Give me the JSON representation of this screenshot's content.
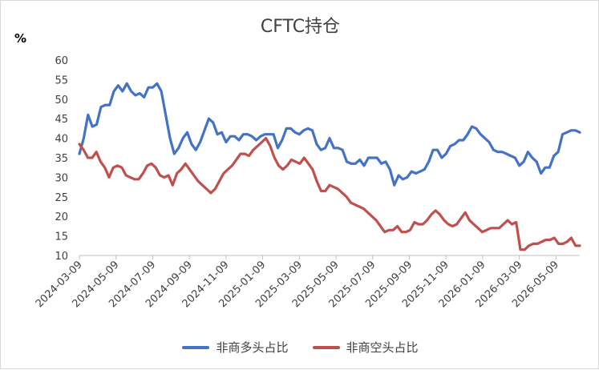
{
  "chart_data": {
    "type": "line",
    "title": "CFTC持仓",
    "unit": "%",
    "ylim": [
      10,
      60
    ],
    "yticks": [
      10,
      15,
      20,
      25,
      30,
      35,
      40,
      45,
      50,
      55,
      60
    ],
    "xlabels": [
      "2024-03-09",
      "2024-05-09",
      "2024-07-09",
      "2024-09-09",
      "2024-11-09",
      "2025-01-09",
      "2025-03-09",
      "2025-05-09",
      "2025-07-09",
      "2025-09-09",
      "2025-11-09",
      "2026-01-09",
      "2026-03-09",
      "2026-05-09"
    ],
    "series": [
      {
        "name": "非商多头占比",
        "color": "#4472c4",
        "values": [
          36,
          40,
          46,
          43,
          43.5,
          48,
          48.5,
          48.5,
          52,
          53.5,
          52,
          54,
          52,
          51,
          51.5,
          50.5,
          53,
          53,
          54,
          52,
          46,
          40,
          36,
          37.5,
          40,
          41.5,
          38.5,
          37,
          39,
          42,
          45,
          44,
          41,
          41.5,
          39,
          40.5,
          40.5,
          39.5,
          41,
          41,
          40.5,
          39.5,
          40.5,
          41,
          41,
          41,
          37.5,
          39.5,
          42.5,
          42.5,
          41.5,
          41,
          42,
          42.5,
          42,
          38.5,
          37,
          37.5,
          40,
          37.5,
          37.5,
          37,
          34,
          33.5,
          33.5,
          34.5,
          33,
          35,
          35,
          35,
          33.5,
          34,
          32,
          28,
          30.5,
          29.5,
          30,
          31.5,
          31,
          31.5,
          32,
          34,
          37,
          37,
          35,
          36,
          38,
          38.5,
          39.5,
          39.5,
          41,
          43,
          42.5,
          41,
          40,
          39,
          37,
          36.5,
          36.5,
          36,
          35.5,
          35,
          33,
          34,
          36.5,
          35,
          34,
          31,
          32.5,
          32.5,
          35.5,
          36.5,
          41,
          41.5,
          42,
          42,
          41.5
        ]
      },
      {
        "name": "非商空头占比",
        "color": "#c0504d",
        "values": [
          38.5,
          37,
          35,
          35,
          36.5,
          34,
          32.5,
          30,
          32.5,
          33,
          32.5,
          30.5,
          30,
          29.5,
          29.5,
          31,
          33,
          33.5,
          32.5,
          30.5,
          30,
          30.5,
          28,
          31,
          32,
          33.5,
          32,
          30.5,
          29,
          28,
          27,
          26,
          27,
          29,
          31,
          32,
          33,
          34.5,
          36,
          36,
          35.5,
          37,
          38,
          39,
          40,
          38,
          35,
          33,
          32,
          33,
          34.5,
          34,
          33.5,
          35,
          33.5,
          32,
          29,
          26.5,
          26.5,
          28,
          27.5,
          27,
          26,
          25,
          23.5,
          23,
          22.5,
          22,
          21,
          20,
          19,
          17.5,
          16,
          16.5,
          16.5,
          17.5,
          16,
          16,
          16.5,
          18.5,
          18,
          18,
          19,
          20.5,
          21.5,
          20.5,
          19,
          18,
          17.5,
          18,
          19.5,
          21,
          19,
          18,
          17,
          16,
          16.5,
          17,
          17,
          17,
          18,
          19,
          18,
          18.5,
          11.5,
          11.5,
          12.5,
          13,
          13,
          13.5,
          14,
          14,
          14.5,
          13,
          13,
          13.5,
          14.5,
          12.5,
          12.5
        ]
      }
    ],
    "grid": false,
    "legend": "bottom"
  }
}
